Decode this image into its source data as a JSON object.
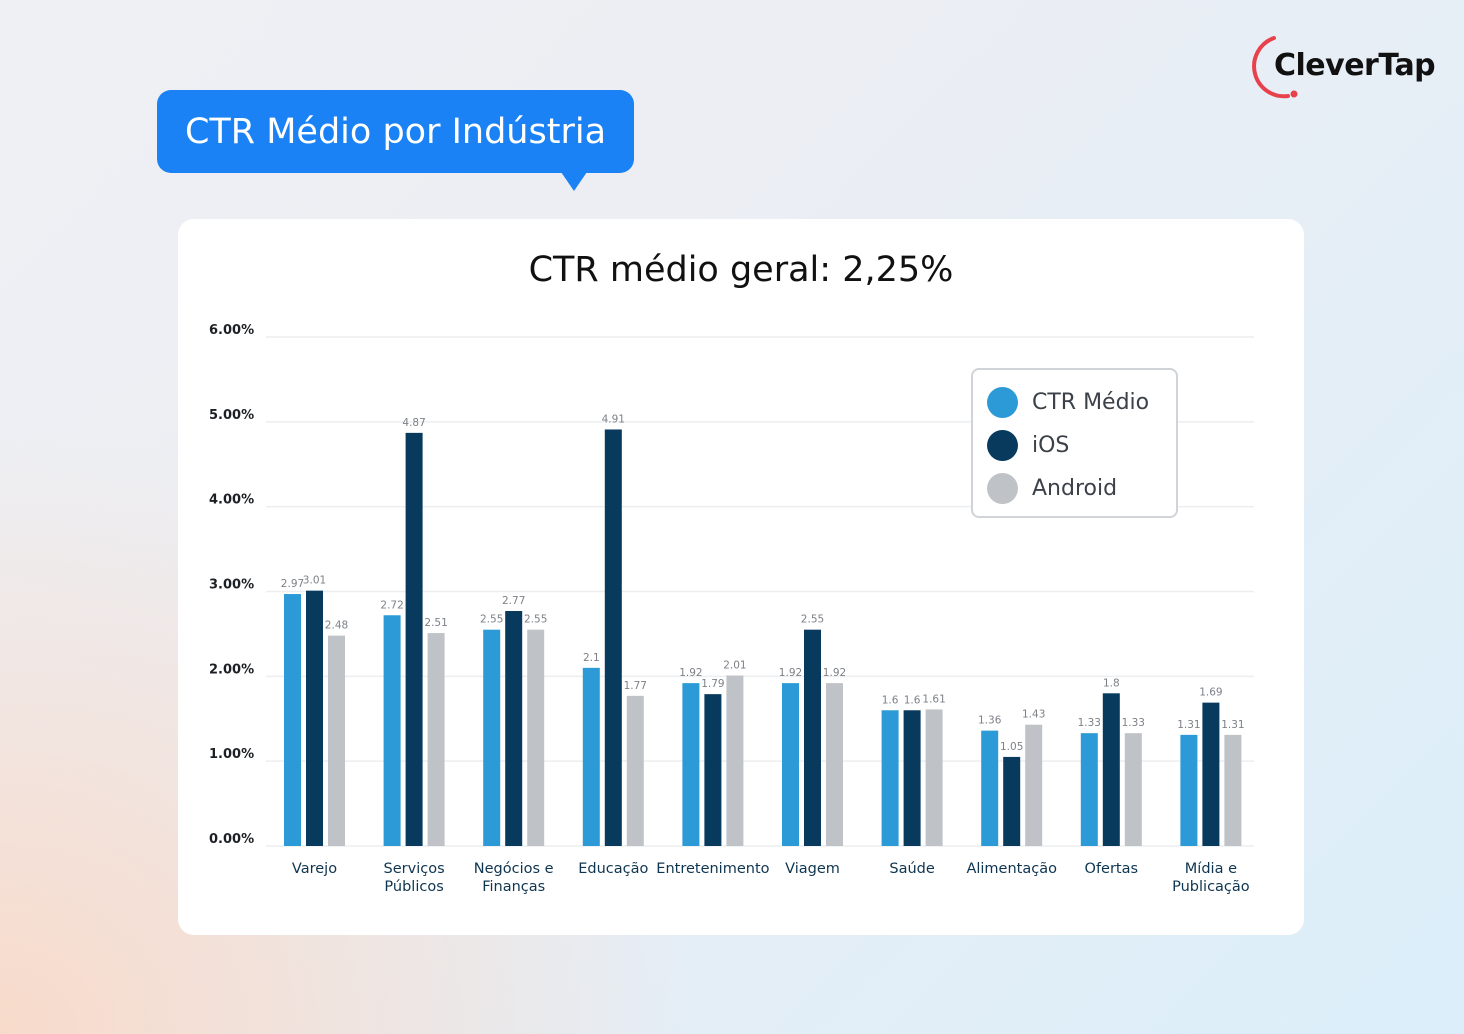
{
  "brand": {
    "name": "CleverTap",
    "accent": "#e8414b"
  },
  "header": {
    "bubble_title": "CTR Médio por Indústria",
    "bubble_color": "#1a82f5"
  },
  "chart_data": {
    "type": "bar",
    "title": "CTR médio geral: 2,25%",
    "xlabel": "",
    "ylabel": "",
    "ylim": [
      0,
      6
    ],
    "yticks": [
      0,
      1,
      2,
      3,
      4,
      5,
      6
    ],
    "ytick_labels": [
      "0.00%",
      "1.00%",
      "2.00%",
      "3.00%",
      "4.00%",
      "5.00%",
      "6.00%"
    ],
    "grid": true,
    "legend_position": "top-right",
    "categories": [
      [
        "Varejo"
      ],
      [
        "Serviços",
        "Públicos"
      ],
      [
        "Negócios e",
        "Finanças"
      ],
      [
        "Educação"
      ],
      [
        "Entretenimento"
      ],
      [
        "Viagem"
      ],
      [
        "Saúde"
      ],
      [
        "Alimentação"
      ],
      [
        "Ofertas"
      ],
      [
        "Mídia e",
        "Publicação"
      ]
    ],
    "series": [
      {
        "name": "CTR Médio",
        "color": "#2b9ad6",
        "values": [
          2.97,
          2.72,
          2.55,
          2.1,
          1.92,
          1.92,
          1.6,
          1.36,
          1.33,
          1.31
        ]
      },
      {
        "name": "iOS",
        "color": "#073a5c",
        "values": [
          3.01,
          4.87,
          2.77,
          4.91,
          1.79,
          2.55,
          1.6,
          1.05,
          1.8,
          1.69
        ]
      },
      {
        "name": "Android",
        "color": "#bfc2c7",
        "values": [
          2.48,
          2.51,
          2.55,
          1.77,
          2.01,
          1.92,
          1.61,
          1.43,
          1.33,
          1.31
        ]
      }
    ]
  }
}
